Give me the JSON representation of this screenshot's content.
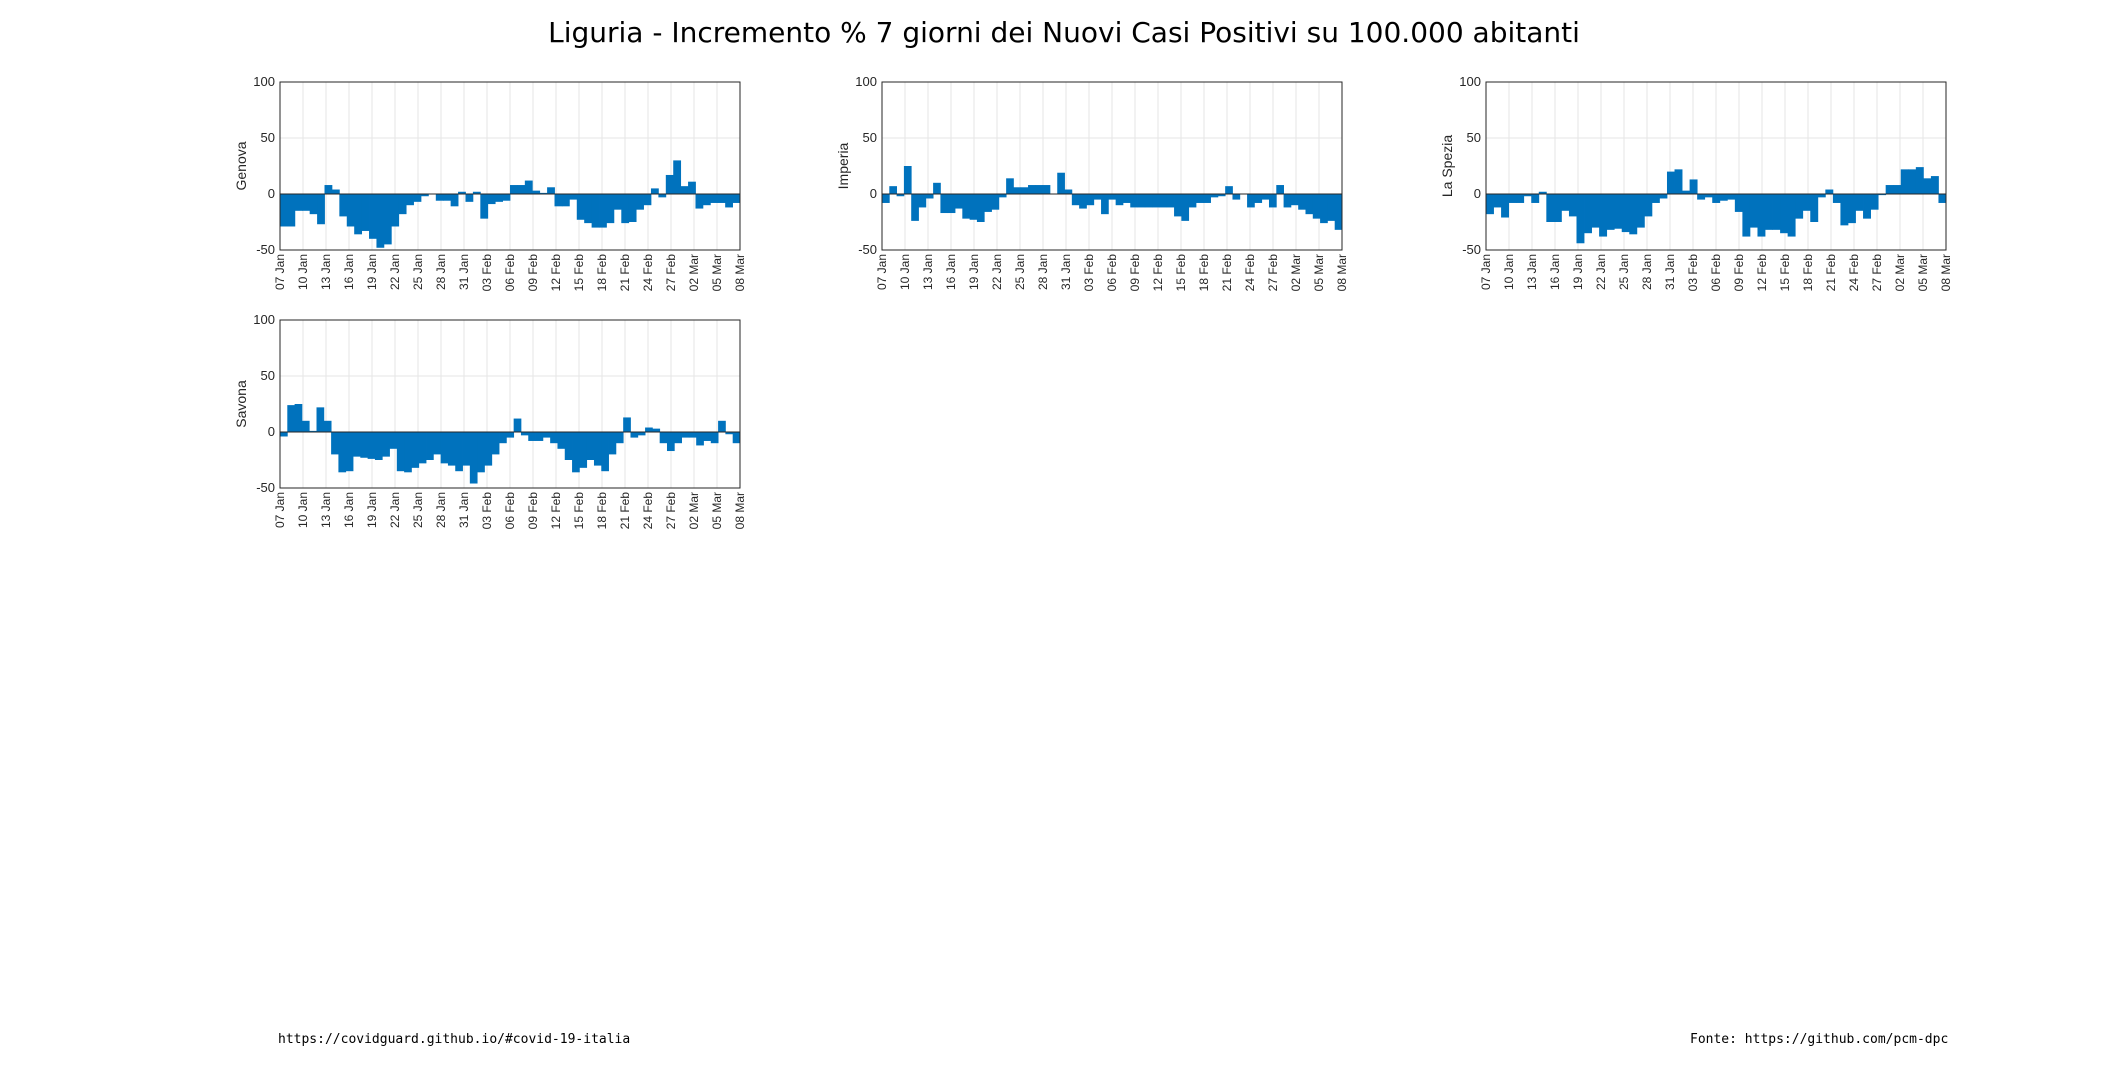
{
  "title": "Liguria - Incremento % 7 giorni dei Nuovi Casi Positivi su 100.000 abitanti",
  "footer": {
    "left": "https://covidguard.github.io/#covid-19-italia",
    "right": "Fonte: https://github.com/pcm-dpc"
  },
  "colors": {
    "bar": "#0072BD",
    "grid": "#e6e6e6",
    "axis": "#262626"
  },
  "x_tick_labels": [
    "07 Jan",
    "10 Jan",
    "13 Jan",
    "16 Jan",
    "19 Jan",
    "22 Jan",
    "25 Jan",
    "28 Jan",
    "31 Jan",
    "03 Feb",
    "06 Feb",
    "09 Feb",
    "12 Feb",
    "15 Feb",
    "18 Feb",
    "21 Feb",
    "24 Feb",
    "27 Feb",
    "02 Mar",
    "05 Mar",
    "08 Mar"
  ],
  "chart_data": [
    {
      "type": "bar",
      "ylabel": "Genova",
      "ylim": [
        -50,
        100
      ],
      "yticks": [
        -50,
        0,
        50,
        100
      ],
      "grid": true,
      "values": [
        -29,
        -29,
        -15,
        -15,
        -18,
        -27,
        8,
        4,
        -20,
        -29,
        -36,
        -33,
        -40,
        -48,
        -45,
        -29,
        -18,
        -10,
        -7,
        -2,
        0,
        -6,
        -6,
        -11,
        2,
        -7,
        2,
        -22,
        -9,
        -7,
        -6,
        8,
        8,
        12,
        3,
        1,
        6,
        -11,
        -11,
        -5,
        -23,
        -26,
        -30,
        -30,
        -26,
        -14,
        -26,
        -25,
        -14,
        -10,
        5,
        -3,
        17,
        30,
        7,
        11,
        -13,
        -10,
        -8,
        -8,
        -12,
        -8
      ]
    },
    {
      "type": "bar",
      "ylabel": "Imperia",
      "ylim": [
        -50,
        100
      ],
      "yticks": [
        -50,
        0,
        50,
        100
      ],
      "grid": true,
      "values": [
        -8,
        7,
        -2,
        25,
        -24,
        -12,
        -4,
        10,
        -17,
        -17,
        -13,
        -22,
        -23,
        -25,
        -16,
        -14,
        -3,
        14,
        6,
        6,
        8,
        8,
        8,
        0,
        19,
        4,
        -10,
        -13,
        -10,
        -5,
        -18,
        -5,
        -10,
        -8,
        -12,
        -12,
        -12,
        -12,
        -12,
        -12,
        -20,
        -24,
        -12,
        -8,
        -8,
        -3,
        -2,
        7,
        -5,
        0,
        -12,
        -8,
        -5,
        -12,
        8,
        -12,
        -10,
        -14,
        -18,
        -22,
        -26,
        -24,
        -32
      ]
    },
    {
      "type": "bar",
      "ylabel": "La Spezia",
      "ylim": [
        -50,
        100
      ],
      "yticks": [
        -50,
        0,
        50,
        100
      ],
      "grid": true,
      "values": [
        -18,
        -12,
        -21,
        -8,
        -8,
        -2,
        -8,
        2,
        -25,
        -25,
        -15,
        -20,
        -44,
        -35,
        -30,
        -38,
        -32,
        -31,
        -34,
        -36,
        -30,
        -20,
        -8,
        -4,
        20,
        22,
        3,
        13,
        -5,
        -3,
        -8,
        -6,
        -5,
        -16,
        -38,
        -30,
        -38,
        -32,
        -32,
        -35,
        -38,
        -22,
        -15,
        -25,
        -3,
        4,
        -8,
        -28,
        -26,
        -15,
        -22,
        -14,
        -1,
        8,
        8,
        22,
        22,
        24,
        14,
        16,
        -8
      ]
    },
    {
      "type": "bar",
      "ylabel": "Savona",
      "ylim": [
        -50,
        100
      ],
      "yticks": [
        -50,
        0,
        50,
        100
      ],
      "grid": true,
      "values": [
        -4,
        24,
        25,
        10,
        1,
        22,
        10,
        -20,
        -36,
        -35,
        -22,
        -23,
        -24,
        -25,
        -22,
        -15,
        -35,
        -36,
        -32,
        -28,
        -25,
        -20,
        -28,
        -30,
        -35,
        -30,
        -46,
        -36,
        -30,
        -20,
        -10,
        -5,
        12,
        -3,
        -8,
        -8,
        -5,
        -10,
        -15,
        -25,
        -36,
        -32,
        -25,
        -30,
        -35,
        -20,
        -10,
        13,
        -5,
        -3,
        4,
        3,
        -10,
        -17,
        -10,
        -5,
        -5,
        -12,
        -8,
        -10,
        10,
        -2,
        -10
      ]
    }
  ]
}
